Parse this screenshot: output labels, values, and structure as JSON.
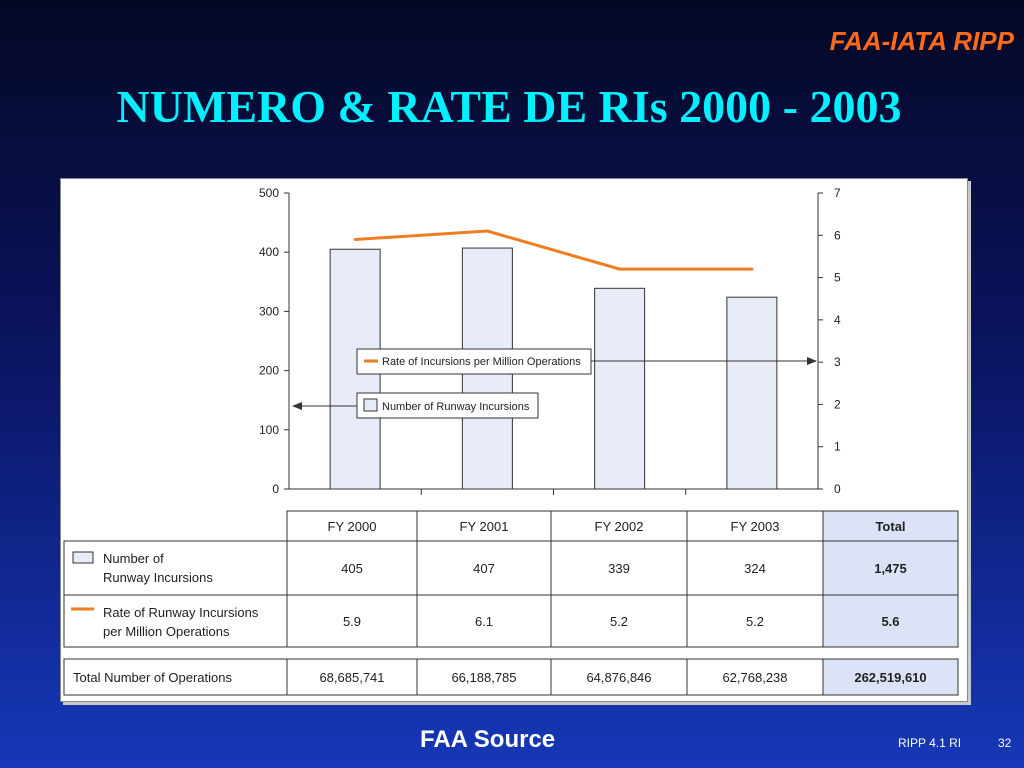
{
  "header": {
    "brand": "FAA-IATA RIPP",
    "title": "NUMERO & RATE DE RIs 2000 - 2003"
  },
  "chart_data": {
    "type": "bar",
    "categories": [
      "FY 2000",
      "FY 2001",
      "FY 2002",
      "FY 2003"
    ],
    "series": [
      {
        "name": "Number of Runway Incursions",
        "type": "bar",
        "axis": "left",
        "values": [
          405,
          407,
          339,
          324
        ],
        "color": "#e8ebf8"
      },
      {
        "name": "Rate of Incursions per Million Operations",
        "type": "line",
        "axis": "right",
        "values": [
          5.9,
          6.1,
          5.2,
          5.2
        ],
        "color": "#ef7d22"
      }
    ],
    "left_axis": {
      "ylim": [
        0,
        500
      ],
      "ticks": [
        "0",
        "100",
        "200",
        "300",
        "400",
        "500"
      ]
    },
    "right_axis": {
      "ylim": [
        0,
        7
      ],
      "ticks": [
        "0",
        "1",
        "2",
        "3",
        "4",
        "5",
        "6",
        "7"
      ]
    },
    "legend": [
      {
        "label": "Rate of Incursions per Million Operations",
        "marker": "line",
        "points_to": "right axis"
      },
      {
        "label": "Number of Runway Incursions",
        "marker": "box",
        "points_to": "left axis"
      }
    ]
  },
  "table": {
    "columns": [
      "FY 2000",
      "FY 2001",
      "FY 2002",
      "FY 2003",
      "Total"
    ],
    "rows": [
      {
        "label": [
          "Number of",
          "Runway Incursions"
        ],
        "marker": "box",
        "cells": [
          "405",
          "407",
          "339",
          "324"
        ],
        "total": "1,475"
      },
      {
        "label": [
          "Rate of Runway Incursions",
          "per Million Operations"
        ],
        "marker": "line",
        "cells": [
          "5.9",
          "6.1",
          "5.2",
          "5.2"
        ],
        "total": "5.6"
      }
    ],
    "operations_row": {
      "label": "Total Number of Operations",
      "cells": [
        "68,685,741",
        "66,188,785",
        "64,876,846",
        "62,768,238"
      ],
      "total": "262,519,610"
    }
  },
  "footer": {
    "source": "FAA Source",
    "ref": "RIPP 4.1 RI",
    "page": "32"
  },
  "colors": {
    "brand": "#ff6a1a",
    "title": "#00f0ff",
    "bar_fill": "#e8ebf8",
    "rate_line": "#ef7d22",
    "total_column": "#dde3f6"
  }
}
